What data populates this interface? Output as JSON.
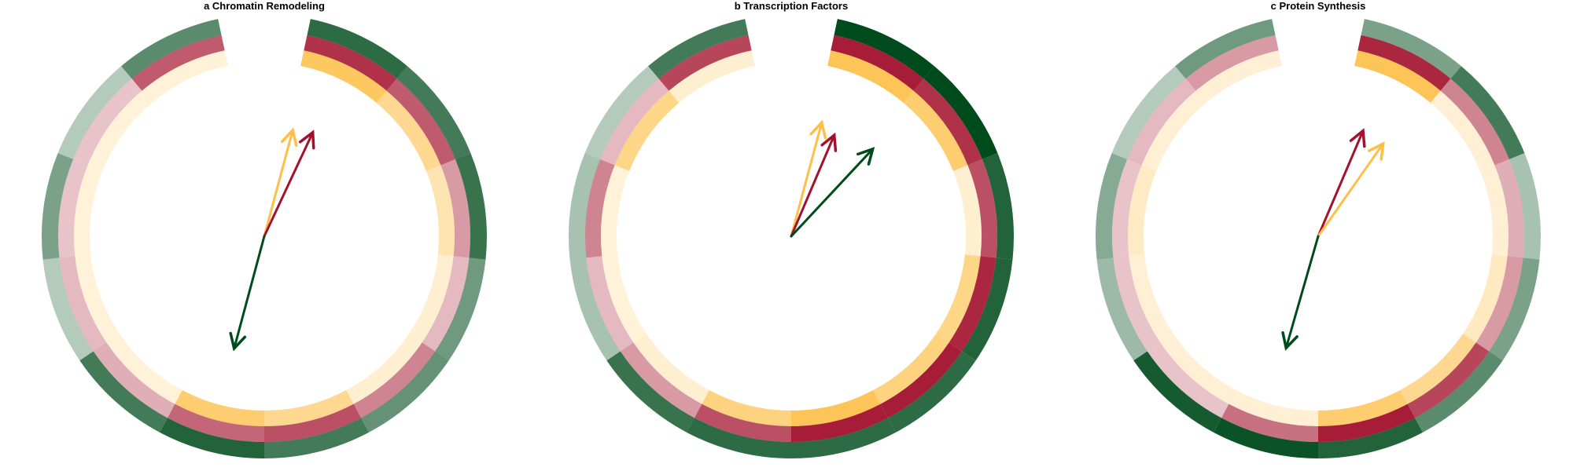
{
  "chart_data": [
    {
      "type": "radial-heatmap",
      "title": "a Chromatin Remodeling",
      "sectors": 12,
      "gap_degrees": 24,
      "rings": [
        {
          "color": "#FDBF47",
          "values": [
            0.85,
            0.55,
            0.35,
            0.15,
            0.15,
            0.55,
            0.75,
            0.1,
            0.1,
            0.1,
            0.1,
            0.1
          ]
        },
        {
          "color": "#A3122D",
          "values": [
            0.85,
            0.65,
            0.35,
            0.2,
            0.45,
            0.7,
            0.6,
            0.25,
            0.2,
            0.15,
            0.15,
            0.65
          ]
        },
        {
          "color": "#004B1C",
          "values": [
            0.8,
            0.7,
            0.75,
            0.5,
            0.55,
            0.7,
            0.85,
            0.7,
            0.2,
            0.45,
            0.2,
            0.6
          ]
        }
      ],
      "arrows": [
        {
          "color": "#FDBF47",
          "angle_deg": 15,
          "length": 0.7
        },
        {
          "color": "#A3122D",
          "angle_deg": 25,
          "length": 0.73
        },
        {
          "color": "#004B1C",
          "angle_deg": 195,
          "length": 0.74
        }
      ]
    },
    {
      "type": "radial-heatmap",
      "title": "b Transcription Factors",
      "sectors": 12,
      "gap_degrees": 24,
      "rings": [
        {
          "color": "#FDBF47",
          "values": [
            0.9,
            0.75,
            0.15,
            0.6,
            0.65,
            0.9,
            0.65,
            0.15,
            0.1,
            0.1,
            0.6,
            0.15
          ]
        },
        {
          "color": "#A3122D",
          "values": [
            0.95,
            0.85,
            0.7,
            0.9,
            0.95,
            0.95,
            0.7,
            0.35,
            0.2,
            0.45,
            0.2,
            0.75
          ]
        },
        {
          "color": "#004B1C",
          "values": [
            1.0,
            1.0,
            0.85,
            0.85,
            0.8,
            0.8,
            0.8,
            0.75,
            0.25,
            0.25,
            0.2,
            0.7
          ]
        }
      ],
      "arrows": [
        {
          "color": "#FDBF47",
          "angle_deg": 15,
          "length": 0.75
        },
        {
          "color": "#A3122D",
          "angle_deg": 23,
          "length": 0.7
        },
        {
          "color": "#004B1C",
          "angle_deg": 43,
          "length": 0.76
        }
      ]
    },
    {
      "type": "radial-heatmap",
      "title": "c Protein Synthesis",
      "sectors": 12,
      "gap_degrees": 24,
      "rings": [
        {
          "color": "#FDBF47",
          "values": [
            0.9,
            0.12,
            0.12,
            0.25,
            0.55,
            0.75,
            0.12,
            0.12,
            0.12,
            0.22,
            0.12,
            0.12
          ]
        },
        {
          "color": "#A3122D",
          "values": [
            0.9,
            0.45,
            0.25,
            0.35,
            0.75,
            0.95,
            0.55,
            0.15,
            0.15,
            0.15,
            0.2,
            0.35
          ]
        },
        {
          "color": "#004B1C",
          "values": [
            0.45,
            0.7,
            0.25,
            0.45,
            0.6,
            0.85,
            0.95,
            0.9,
            0.3,
            0.4,
            0.2,
            0.5
          ]
        }
      ],
      "arrows": [
        {
          "color": "#A3122D",
          "angle_deg": 23,
          "length": 0.73
        },
        {
          "color": "#FDBF47",
          "angle_deg": 35,
          "length": 0.72
        },
        {
          "color": "#004B1C",
          "angle_deg": 196,
          "length": 0.74
        }
      ]
    }
  ]
}
